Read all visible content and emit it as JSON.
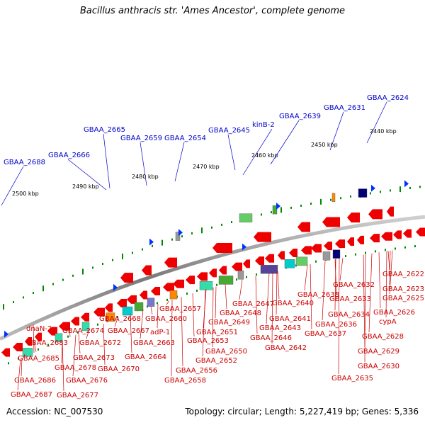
{
  "title": "Bacillus anthracis str. 'Ames Ancestor', complete genome",
  "footer": {
    "accession": "Accession: NC_007530",
    "summary": "Topology: circular; Length: 5,227,419 bp; Genes: 5,336"
  },
  "kbp_labels": [
    "2440 kbp",
    "2450 kbp",
    "2460 kbp",
    "2470 kbp",
    "2480 kbp",
    "2490 kbp",
    "2500 kbp"
  ],
  "forward_labels": [
    "GBAA_2624",
    "GBAA_2631",
    "GBAA_2639",
    "kinB-2",
    "GBAA_2645",
    "GBAA_2654",
    "GBAA_2659",
    "GBAA_2665",
    "GBAA_2666",
    "GBAA_2688"
  ],
  "reverse_labels": [
    "GBAA_2622",
    "GBAA_2623",
    "GBAA_2625",
    "GBAA_2626",
    "cypA",
    "GBAA_2628",
    "GBAA_2629",
    "GBAA_2630",
    "GBAA_2632",
    "GBAA_2633",
    "GBAA_2634",
    "GBAA_2636",
    "GBAA_2637",
    "GBAA_2635",
    "GBAA_2638",
    "GBAA_2640",
    "GBAA_2641",
    "GBAA_2643",
    "GBAA_2646",
    "GBAA_2642",
    "GBAA_2647",
    "GBAA_2648",
    "GBAA_2649",
    "GBAA_2651",
    "GBAA_2653",
    "GBAA_2650",
    "GBAA_2652",
    "GBAA_2656",
    "GBAA_2658",
    "GBAA_2657",
    "GBAA_2660",
    "adP-1",
    "GBAA_2663",
    "GBAA_2664",
    "GBAA_2668",
    "GBAA_2667",
    "GBAA_2670",
    "GBAA_2674",
    "GBAA_2672",
    "GBAA_2673",
    "GBAA_2678",
    "GBAA_2676",
    "GBAA_2677",
    "dnaN-2",
    "GBAA_2683",
    "GBAA_2685",
    "GBAA_2686",
    "GBAA_2687"
  ],
  "colors": {
    "forward_label": "#0000cc",
    "reverse_label": "#cc0000",
    "forward_gene": "#0033ff",
    "reverse_gene": "#ee0000",
    "backbone": "#888888",
    "tick": "#008800"
  }
}
